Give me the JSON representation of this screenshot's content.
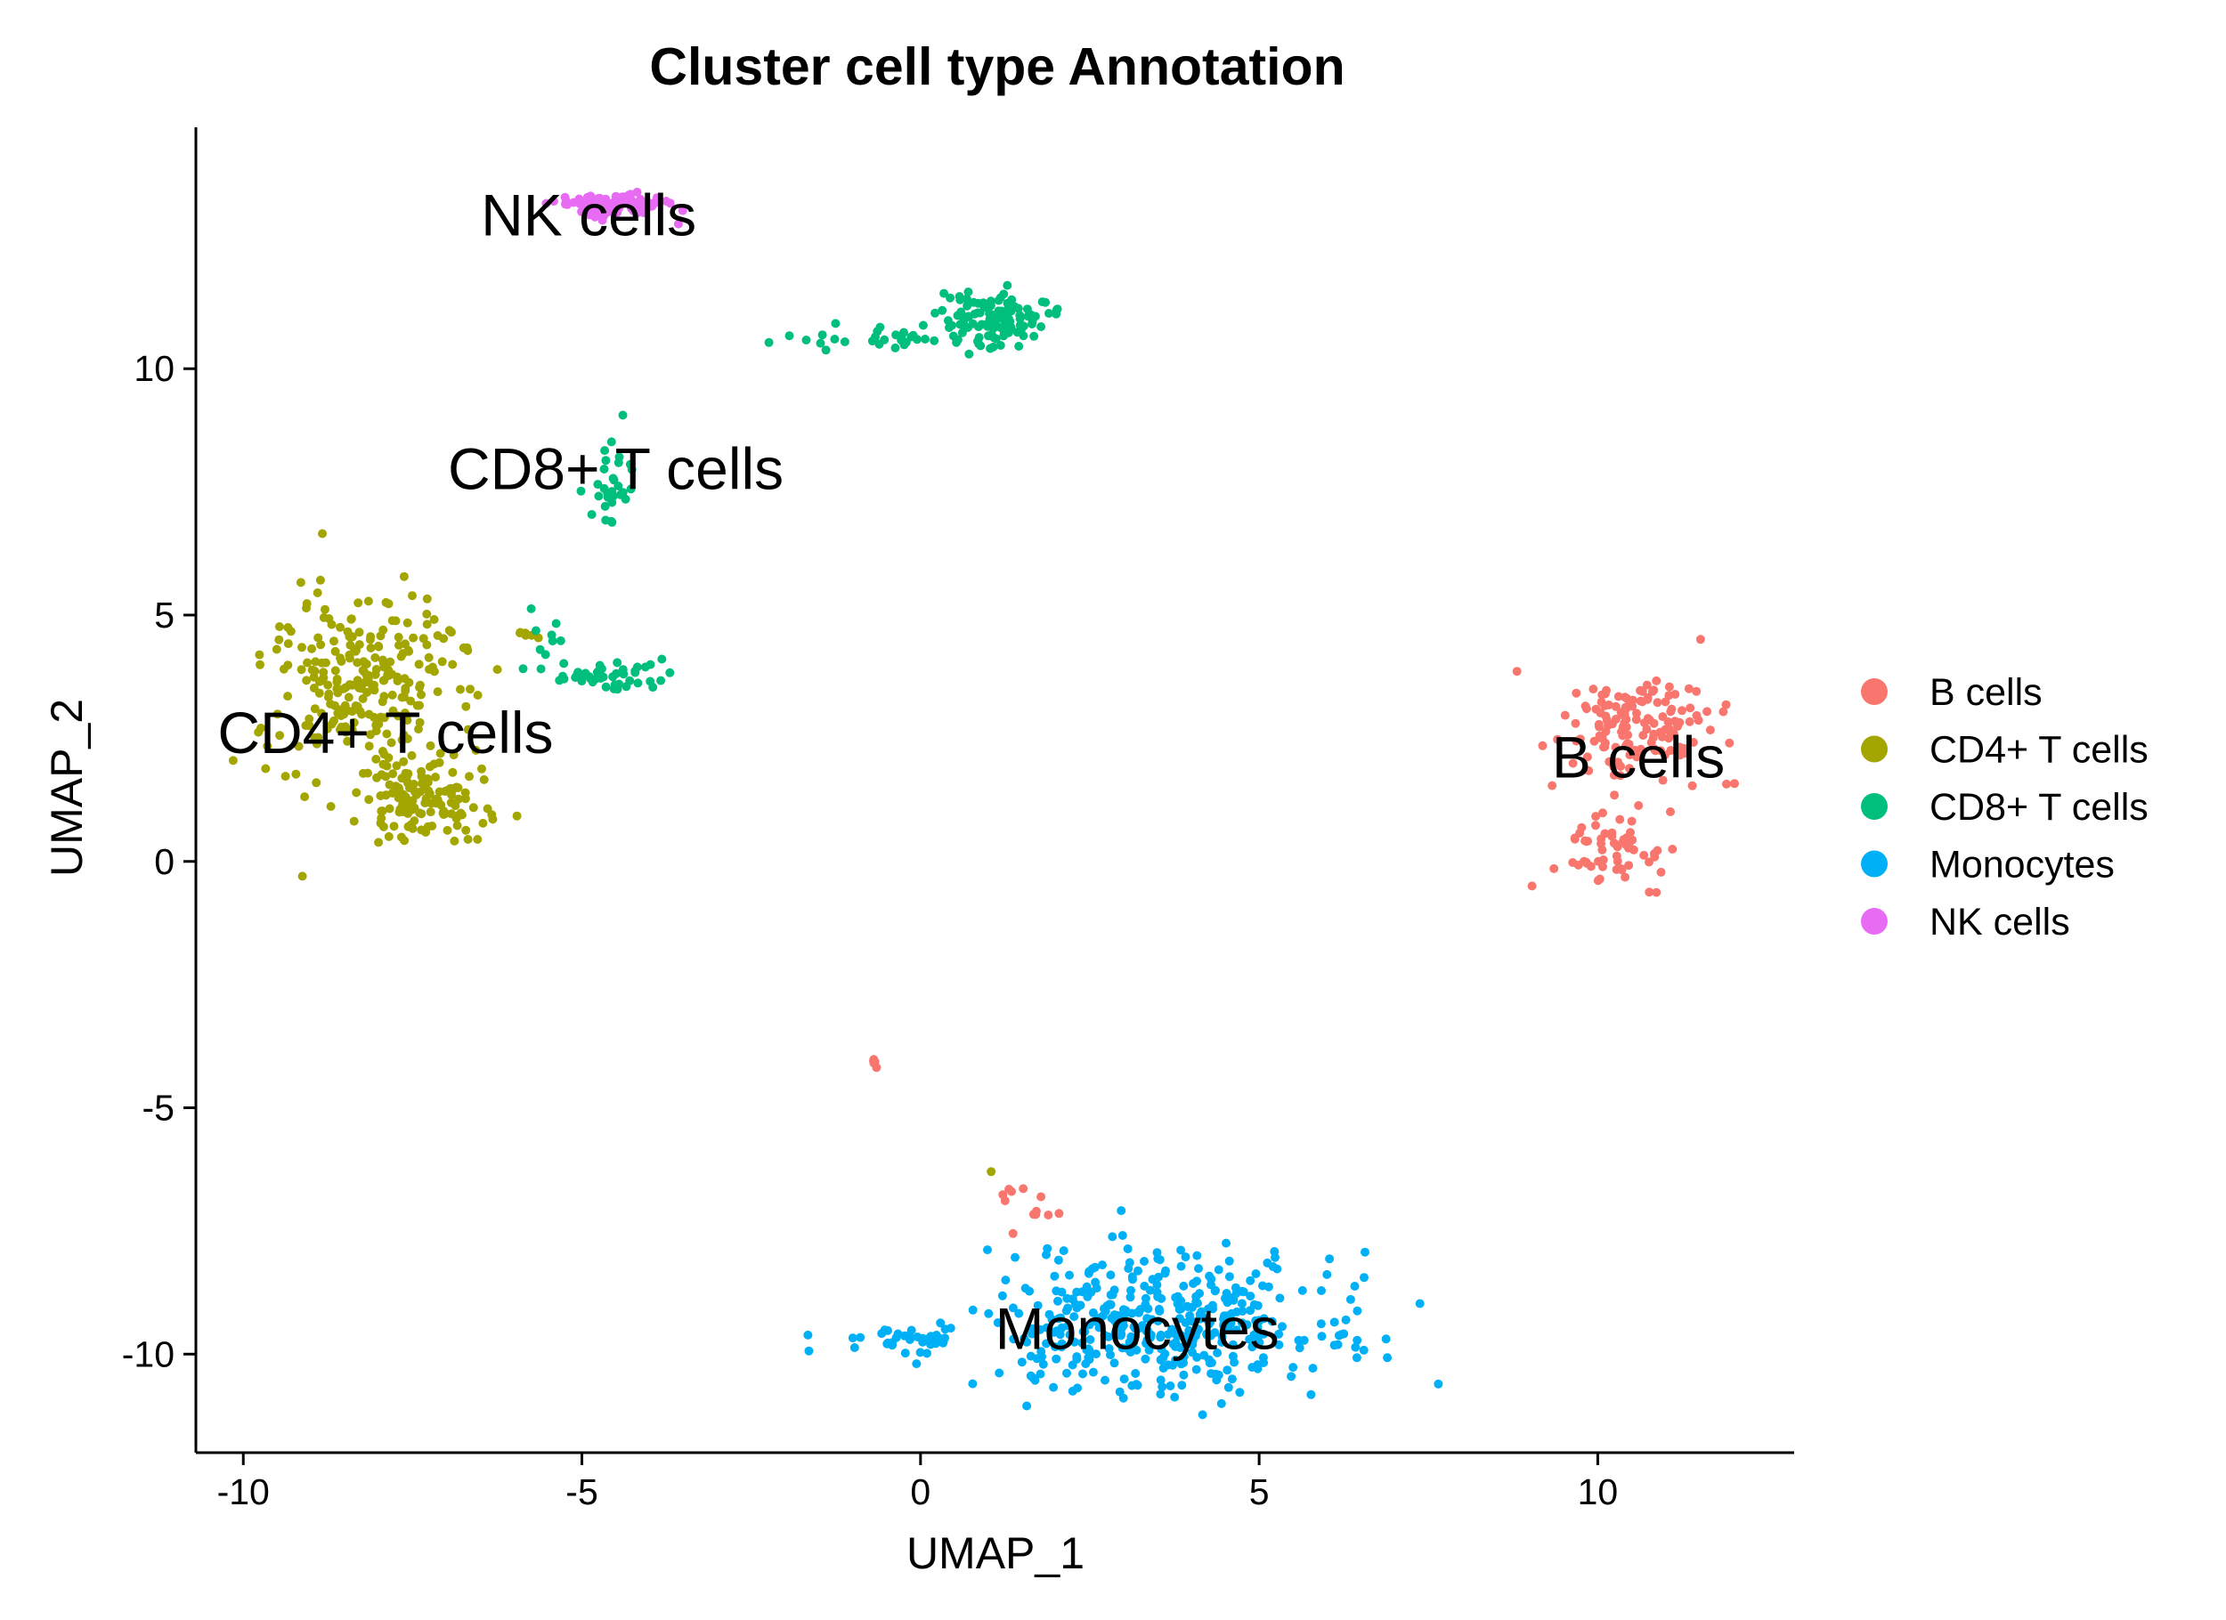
{
  "chart_data": {
    "type": "scatter",
    "title": "Cluster cell type Annotation",
    "xlabel": "UMAP_1",
    "ylabel": "UMAP_2",
    "xlim": [
      -10.7,
      12.9
    ],
    "ylim": [
      -12.0,
      14.9
    ],
    "x_ticks": [
      -10,
      -5,
      0,
      5,
      10
    ],
    "y_ticks": [
      -10,
      -5,
      0,
      5,
      10
    ],
    "grid": false,
    "legend_position": "right",
    "series": [
      {
        "name": "B cells",
        "color": "#F8766D",
        "clusters": [
          {
            "cx": 10.6,
            "cy": 2.7,
            "sx": 0.55,
            "sy": 0.55,
            "n": 150
          },
          {
            "cx": 10.2,
            "cy": 0.2,
            "sx": 0.4,
            "sy": 0.4,
            "n": 60
          },
          {
            "cx": -0.65,
            "cy": -4.05,
            "sx": 0.06,
            "sy": 0.06,
            "n": 6
          },
          {
            "cx": 1.6,
            "cy": -6.9,
            "sx": 0.2,
            "sy": 0.25,
            "n": 12
          }
        ]
      },
      {
        "name": "CD4+ T cells",
        "color": "#A3A500",
        "clusters": [
          {
            "cx": -8.2,
            "cy": 3.7,
            "sx": 0.75,
            "sy": 0.85,
            "n": 240
          },
          {
            "cx": -7.3,
            "cy": 1.3,
            "sx": 0.55,
            "sy": 0.45,
            "n": 140
          },
          {
            "cx": -5.8,
            "cy": 4.6,
            "sx": 0.1,
            "sy": 0.1,
            "n": 6
          },
          {
            "cx": 1.1,
            "cy": -6.3,
            "sx": 0.03,
            "sy": 0.03,
            "n": 1
          }
        ]
      },
      {
        "name": "CD8+ T cells",
        "color": "#00BF7D",
        "clusters": [
          {
            "cx": 1.1,
            "cy": 11.0,
            "sx": 0.4,
            "sy": 0.3,
            "n": 120
          },
          {
            "cx": -0.3,
            "cy": 10.6,
            "sx": 0.7,
            "sy": 0.12,
            "n": 30
          },
          {
            "cx": -4.6,
            "cy": 7.6,
            "sx": 0.2,
            "sy": 0.4,
            "n": 30
          },
          {
            "cx": -4.7,
            "cy": 3.8,
            "sx": 0.45,
            "sy": 0.15,
            "n": 45
          },
          {
            "cx": -5.5,
            "cy": 4.5,
            "sx": 0.2,
            "sy": 0.3,
            "n": 8
          }
        ]
      },
      {
        "name": "Monocytes",
        "color": "#00B0F6",
        "clusters": [
          {
            "cx": 3.5,
            "cy": -9.4,
            "sx": 1.3,
            "sy": 0.7,
            "n": 420
          },
          {
            "cx": -0.2,
            "cy": -9.7,
            "sx": 0.6,
            "sy": 0.12,
            "n": 35
          }
        ]
      },
      {
        "name": "NK cells",
        "color": "#E76BF3",
        "clusters": [
          {
            "cx": -4.6,
            "cy": 13.3,
            "sx": 0.4,
            "sy": 0.12,
            "n": 120
          }
        ]
      }
    ],
    "annotations": [
      {
        "text": "NK cells",
        "x": -4.9,
        "y": 13.1
      },
      {
        "text": "CD8+ T cells",
        "x": -4.5,
        "y": 7.95
      },
      {
        "text": "CD4+ T cells",
        "x": -7.9,
        "y": 2.6
      },
      {
        "text": "B cells",
        "x": 10.6,
        "y": 2.1
      },
      {
        "text": "Monocytes",
        "x": 3.2,
        "y": -9.5
      }
    ]
  }
}
